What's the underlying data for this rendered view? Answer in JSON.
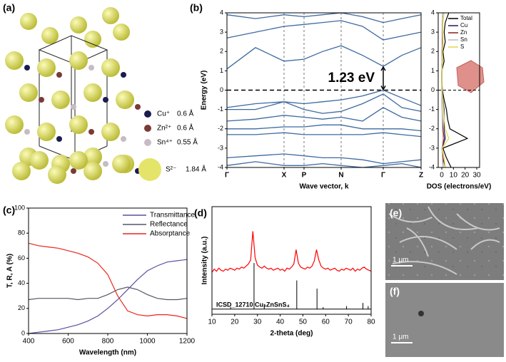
{
  "panel_labels": [
    "(a)",
    "(b)",
    "(c)",
    "(d)",
    "(e)",
    "(f)"
  ],
  "structure_legend": [
    {
      "ion": "Cu⁺",
      "radius": "0.6 Å",
      "color": "#1c1c4e"
    },
    {
      "ion": "Zn²⁺",
      "radius": "0.6 Å",
      "color": "#7a3b36"
    },
    {
      "ion": "Sn⁴⁺",
      "radius": "0.55 Å",
      "color": "#c8bcc4"
    },
    {
      "ion": "S²⁻",
      "radius": "1.84 Å",
      "color": "#e4e46a"
    }
  ],
  "sem": [
    {
      "scale_bar": "1 μm"
    },
    {
      "scale_bar": "1 μm"
    }
  ],
  "chart_data": [
    {
      "type": "line",
      "xlabel": "Wave vector, k",
      "ylabel": "Energy (eV)",
      "annotation": "1.23 eV",
      "color": "#3d6aa1",
      "xlim": [
        0,
        272
      ],
      "ylim": [
        -4,
        4
      ],
      "yticks": [
        -4,
        -3,
        -2,
        -1,
        0,
        1,
        2,
        3,
        4
      ],
      "xticks": [
        {
          "value": 0,
          "label": "Γ"
        },
        {
          "value": 80,
          "label": "X"
        },
        {
          "value": 108,
          "label": "P"
        },
        {
          "value": 160,
          "label": "N"
        },
        {
          "value": 219,
          "label": "Γ"
        },
        {
          "value": 272,
          "label": "Z"
        }
      ],
      "x": [
        0,
        40,
        80,
        108,
        134,
        160,
        190,
        219,
        245,
        272
      ],
      "series": [
        {
          "values": [
            1.1,
            2.2,
            1.5,
            1.6,
            2.0,
            2.3,
            1.8,
            1.23,
            1.8,
            2.2
          ]
        },
        {
          "values": [
            2.7,
            3.0,
            3.3,
            3.4,
            3.5,
            3.6,
            3.3,
            2.6,
            2.8,
            3.0
          ]
        },
        {
          "values": [
            3.9,
            3.7,
            3.9,
            3.8,
            3.9,
            4.0,
            3.8,
            3.5,
            3.7,
            3.9
          ]
        },
        {
          "values": [
            -0.9,
            -0.7,
            -0.6,
            -0.7,
            -0.6,
            -0.5,
            -0.3,
            0,
            -0.4,
            -0.8
          ]
        },
        {
          "values": [
            -1.0,
            -1.0,
            -0.6,
            -1.0,
            -1.2,
            -1.1,
            -0.7,
            -0.2,
            -0.9,
            -1.1
          ]
        },
        {
          "values": [
            -1.6,
            -1.5,
            -1.3,
            -1.4,
            -1.5,
            -1.4,
            -1.6,
            -0.9,
            -1.4,
            -1.6
          ]
        },
        {
          "values": [
            -2.0,
            -2.0,
            -1.9,
            -1.9,
            -1.8,
            -1.8,
            -2.0,
            -2.0,
            -2.0,
            -2.1
          ]
        },
        {
          "values": [
            -2.3,
            -2.3,
            -2.2,
            -2.3,
            -2.3,
            -2.3,
            -2.3,
            -2.2,
            -2.3,
            -2.4
          ]
        },
        {
          "values": [
            -3.5,
            -3.4,
            -3.3,
            -3.4,
            -3.5,
            -3.5,
            -3.6,
            -3.8,
            -3.7,
            -3.6
          ]
        },
        {
          "values": [
            -3.9,
            -3.7,
            -3.9,
            -3.9,
            -3.8,
            -3.9,
            -4.0,
            -3.9,
            -3.8,
            -4.0
          ]
        }
      ]
    },
    {
      "type": "line",
      "orientation": "horizontal",
      "xlabel": "DOS (electrons/eV)",
      "xlim": [
        0,
        30
      ],
      "xticks": [
        0,
        10,
        20,
        30
      ],
      "ylim": [
        -4,
        4
      ],
      "yticks": [
        -4,
        -3,
        -2,
        -1,
        0,
        1,
        2,
        3,
        4
      ],
      "energy": [
        -4,
        -3.5,
        -3,
        -2.5,
        -2,
        -1.5,
        -1,
        -0.5,
        0,
        0.5,
        1,
        1.5,
        2,
        2.5,
        3,
        3.5,
        4
      ],
      "series": [
        {
          "name": "Total",
          "color": "#000000",
          "values": [
            8,
            4,
            1,
            22,
            7,
            5,
            4,
            2,
            0.5,
            0,
            0,
            2,
            1,
            3,
            2,
            3,
            6
          ]
        },
        {
          "name": "Cu",
          "color": "#1a1a5e",
          "values": [
            1,
            1,
            0.3,
            3,
            2,
            2,
            2,
            1,
            0.3,
            0,
            0,
            0.5,
            0.3,
            0.5,
            0.5,
            0.5,
            1
          ]
        },
        {
          "name": "Zn",
          "color": "#8b1a1a",
          "values": [
            3,
            1,
            0.2,
            2,
            1,
            0.5,
            0.3,
            0.2,
            0,
            0,
            0,
            0.3,
            0.2,
            0.5,
            0.3,
            0.5,
            1
          ]
        },
        {
          "name": "Sn",
          "color": "#bbbbbb",
          "values": [
            1,
            0.5,
            0.2,
            1,
            0.5,
            0.3,
            0.3,
            0.2,
            0,
            0,
            0,
            0.5,
            0.3,
            0.8,
            0.5,
            0.5,
            1
          ]
        },
        {
          "name": "S",
          "color": "#e0d84a",
          "values": [
            3,
            2,
            0.3,
            6,
            3,
            2,
            1.5,
            0.8,
            0.2,
            0,
            0,
            0.8,
            0.4,
            1.2,
            0.7,
            1,
            2
          ]
        }
      ]
    },
    {
      "type": "line",
      "xlabel": "Wavelength (nm)",
      "ylabel": "T, R, A (%)",
      "xlim": [
        400,
        1200
      ],
      "xticks": [
        400,
        600,
        800,
        1000,
        1200
      ],
      "ylim": [
        0,
        100
      ],
      "yticks": [
        0,
        20,
        40,
        60,
        80,
        100
      ],
      "x": [
        400,
        450,
        500,
        550,
        600,
        650,
        700,
        750,
        800,
        850,
        900,
        950,
        1000,
        1050,
        1100,
        1150,
        1200
      ],
      "series": [
        {
          "name": "Transmittance",
          "color": "#5a4fa0",
          "values": [
            0,
            1,
            2,
            3,
            5,
            7,
            10,
            14,
            20,
            27,
            35,
            43,
            50,
            54,
            57,
            58,
            59
          ]
        },
        {
          "name": "Reflectance",
          "color": "#555566",
          "values": [
            27,
            28,
            28,
            28,
            28,
            27,
            28,
            28,
            31,
            35,
            37,
            35,
            31,
            28,
            27,
            27,
            28
          ]
        },
        {
          "name": "Absorptance",
          "color": "#e8261c",
          "values": [
            72,
            70,
            69,
            68,
            66,
            64,
            61,
            56,
            47,
            30,
            18,
            15,
            14,
            15,
            15,
            14,
            12
          ]
        }
      ]
    },
    {
      "type": "line",
      "xlabel": "2-theta (deg)",
      "ylabel": "Intensity (a.u.)",
      "reference_label": "ICSD_12710 Cu₂ZnSnS₄",
      "xlim": [
        10,
        80
      ],
      "xticks": [
        10,
        20,
        30,
        40,
        50,
        60,
        70,
        80
      ],
      "ylim": [
        -5,
        100
      ],
      "series": [
        {
          "color": "#ff0000",
          "x": [
            10,
            11,
            12,
            13,
            14,
            15,
            16,
            17,
            18,
            19,
            20,
            21,
            22,
            23,
            24,
            25,
            26,
            27,
            28,
            29,
            30,
            31,
            32,
            33,
            34,
            35,
            36,
            37,
            38,
            39,
            40,
            41,
            42,
            43,
            44,
            45,
            46,
            47,
            48,
            49,
            50,
            51,
            52,
            53,
            54,
            55,
            56,
            57,
            58,
            59,
            60,
            61,
            62,
            63,
            64,
            65,
            66,
            67,
            68,
            69,
            70,
            71,
            72,
            73,
            74,
            75,
            76,
            77,
            78,
            79,
            80
          ],
          "values": [
            36,
            39,
            37,
            40,
            38,
            37,
            39,
            38,
            40,
            39,
            38,
            40,
            39,
            41,
            40,
            42,
            44,
            48,
            76,
            50,
            43,
            41,
            40,
            42,
            40,
            39,
            40,
            38,
            39,
            40,
            38,
            39,
            37,
            40,
            39,
            41,
            44,
            58,
            45,
            41,
            40,
            39,
            41,
            40,
            42,
            47,
            58,
            48,
            42,
            40,
            39,
            40,
            38,
            39,
            40,
            38,
            37,
            39,
            38,
            40,
            39,
            38,
            40,
            37,
            39,
            38,
            40,
            41,
            39,
            38,
            37
          ]
        },
        {
          "color": "#000000",
          "style": "stick",
          "x": [
            18.2,
            28.5,
            33.0,
            47.3,
            56.2,
            58.9,
            69.2,
            76.4,
            78.7
          ],
          "values": [
            2,
            45,
            5,
            28,
            20,
            2,
            3,
            6,
            3
          ]
        }
      ]
    }
  ]
}
